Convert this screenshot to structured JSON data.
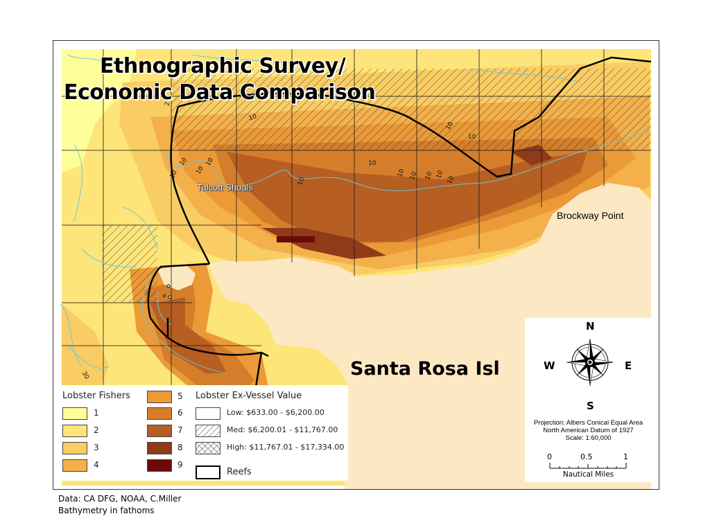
{
  "title": {
    "line1": "Ethnographic Survey/",
    "line2": "Economic Data Comparison"
  },
  "places": {
    "talcott": "Talcott Shoals",
    "brockway": "Brockway Point",
    "island": "Santa Rosa Isl"
  },
  "contour_labels": [
    "10",
    "10",
    "10",
    "10",
    "10",
    "10",
    "10",
    "10",
    "10",
    "10",
    "10",
    "10",
    "10",
    "10",
    "2",
    "30"
  ],
  "legend": {
    "fishers_title": "Lobster Fishers",
    "fishers": [
      {
        "label": "1",
        "color": "#ffff99"
      },
      {
        "label": "2",
        "color": "#fde57a"
      },
      {
        "label": "3",
        "color": "#f9cd63"
      },
      {
        "label": "4",
        "color": "#f4b04b"
      },
      {
        "label": "5",
        "color": "#eb9a37"
      },
      {
        "label": "6",
        "color": "#d47e2b"
      },
      {
        "label": "7",
        "color": "#b75e22"
      },
      {
        "label": "8",
        "color": "#8f3a18"
      },
      {
        "label": "9",
        "color": "#6b0a0a"
      }
    ],
    "value_title": "Lobster Ex-Vessel Value",
    "values": [
      {
        "label": "Low: $633.00 - $6,200.00",
        "pattern": "none"
      },
      {
        "label": "Med: $6,200.01 - $11,767.00",
        "pattern": "hatch"
      },
      {
        "label": "High: $11,767.01 - $17,334.00",
        "pattern": "crosshatch"
      }
    ],
    "reefs_label": "Reefs"
  },
  "compass": {
    "n": "N",
    "s": "S",
    "e": "E",
    "w": "W",
    "projection": "Projection: Albers Conical Equal Area",
    "datum": "North American Datum of 1927",
    "scale": "Scale: 1:60,000",
    "scale_ticks": [
      "0",
      "0.5",
      "1"
    ],
    "scale_unit": "Nautical Miles"
  },
  "footer": {
    "line1": "Data: CA DFG, NOAA, C.Miller",
    "line2": "Bathymetry in fathoms"
  },
  "colors": {
    "land": "#fde8c4",
    "reef": "#000000",
    "contour": "#6fc6d8"
  }
}
